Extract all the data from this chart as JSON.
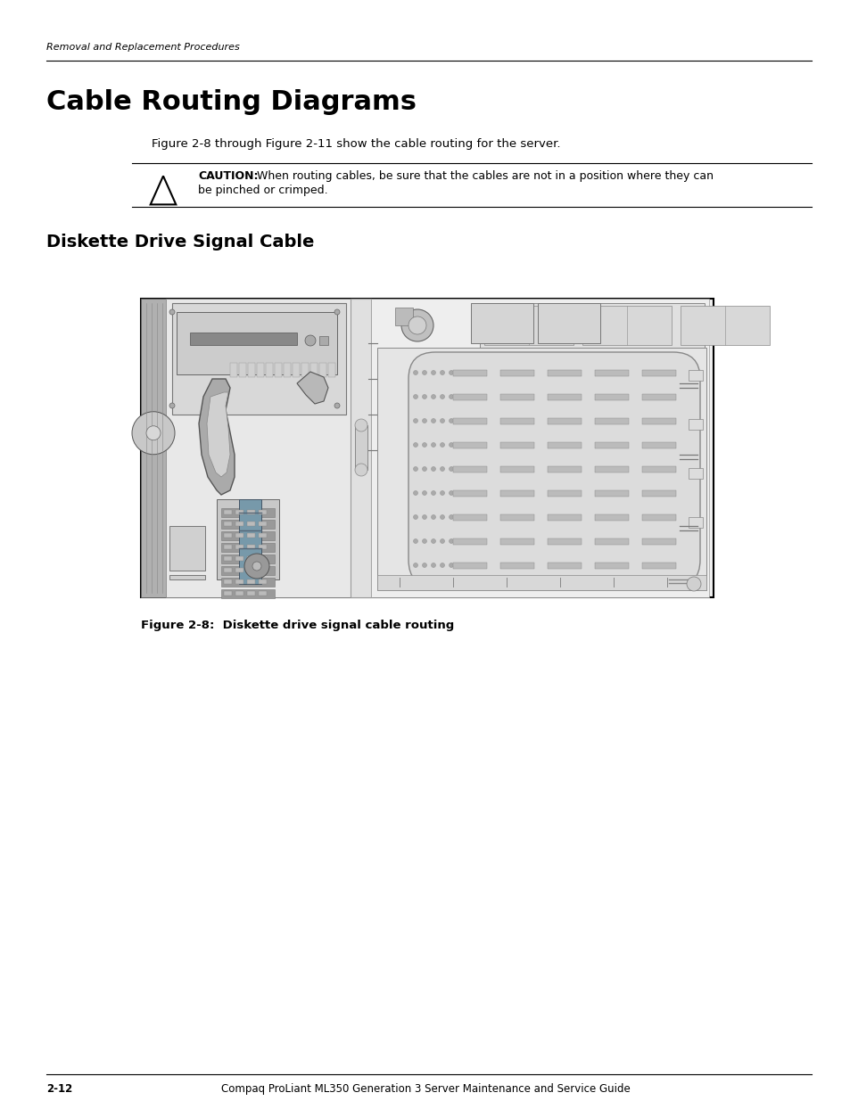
{
  "bg_color": "#ffffff",
  "header_italic_text": "Removal and Replacement Procedures",
  "main_title": "Cable Routing Diagrams",
  "body_text": "Figure 2-8 through Figure 2-11 show the cable routing for the server.",
  "caution_bold": "CAUTION:",
  "caution_rest": "  When routing cables, be sure that the cables are not in a position where they can\nbe pinched or crimped.",
  "section_title": "Diskette Drive Signal Cable",
  "figure_caption": "Figure 2-8:  Diskette drive signal cable routing",
  "footer_left": "2-12",
  "footer_center": "Compaq ProLiant ML350 Generation 3 Server Maintenance and Service Guide"
}
